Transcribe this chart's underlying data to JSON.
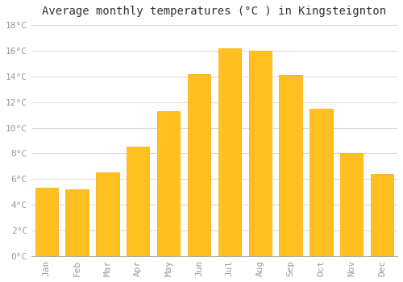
{
  "title": "Average monthly temperatures (°C ) in Kingsteignton",
  "months": [
    "Jan",
    "Feb",
    "Mar",
    "Apr",
    "May",
    "Jun",
    "Jul",
    "Aug",
    "Sep",
    "Oct",
    "Nov",
    "Dec"
  ],
  "values": [
    5.3,
    5.2,
    6.5,
    8.5,
    11.3,
    14.2,
    16.2,
    16.0,
    14.1,
    11.5,
    8.0,
    6.4
  ],
  "bar_color_main": "#FFC020",
  "bar_color_edge": "#FFA500",
  "background_color": "#FFFFFF",
  "grid_color": "#DDDDDD",
  "ylim": [
    0,
    18
  ],
  "ytick_step": 2,
  "title_fontsize": 10,
  "tick_fontsize": 8,
  "tick_label_color": "#999999"
}
